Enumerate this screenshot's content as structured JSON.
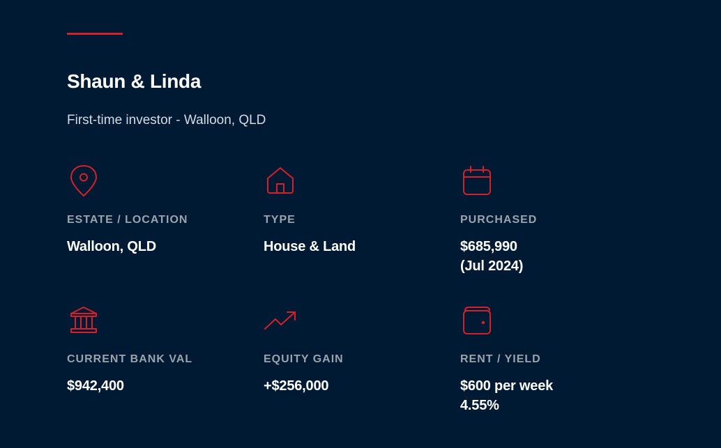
{
  "colors": {
    "background": "#001a33",
    "accent": "#d3222c",
    "label": "#9ba3ad",
    "text": "#ffffff"
  },
  "header": {
    "title": "Shaun & Linda",
    "subtitle": "First-time investor - Walloon, QLD"
  },
  "stats": [
    {
      "icon": "map-pin-icon",
      "label": "ESTATE / LOCATION",
      "lines": [
        "Walloon, QLD"
      ]
    },
    {
      "icon": "house-icon",
      "label": "TYPE",
      "lines": [
        "House & Land"
      ]
    },
    {
      "icon": "calendar-icon",
      "label": "PURCHASED",
      "lines": [
        "$685,990",
        "(Jul 2024)"
      ]
    },
    {
      "icon": "bank-icon",
      "label": "CURRENT BANK VAL",
      "lines": [
        "$942,400"
      ]
    },
    {
      "icon": "trending-up-icon",
      "label": "EQUITY GAIN",
      "lines": [
        "+$256,000"
      ]
    },
    {
      "icon": "wallet-icon",
      "label": "RENT / YIELD",
      "lines": [
        "$600 per week",
        "4.55%"
      ]
    }
  ]
}
